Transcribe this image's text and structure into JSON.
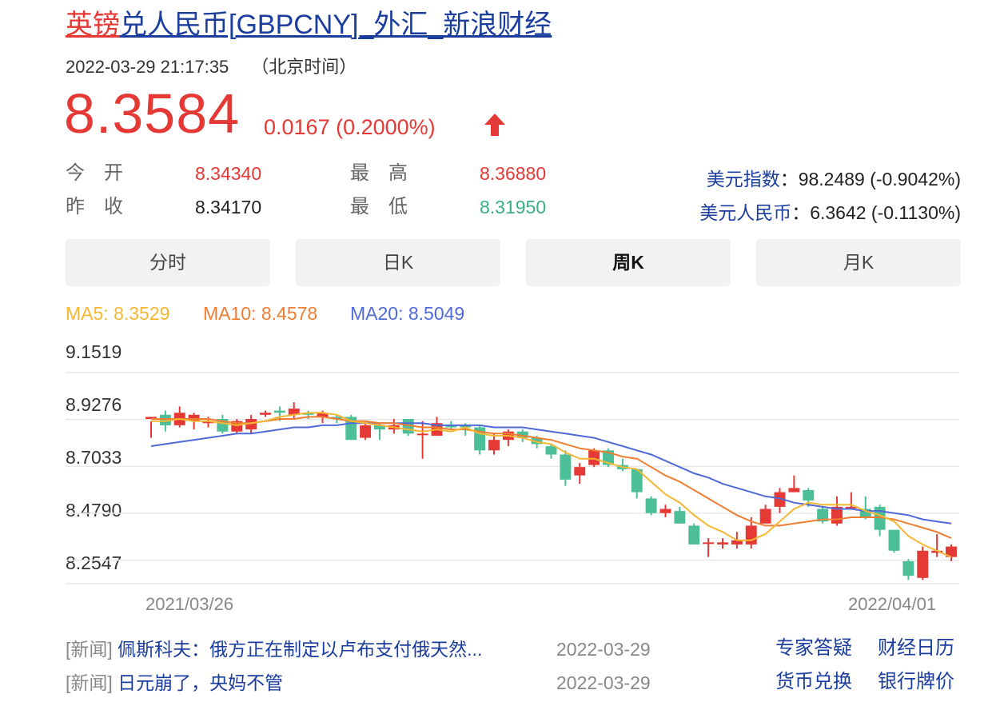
{
  "title": {
    "highlight": "英镑",
    "rest": "兑人民币[GBPCNY]_外汇_新浪财经"
  },
  "datetime": "2022-03-29 21:17:35",
  "timezone": "（北京时间）",
  "price": "8.3584",
  "change": "0.0167 (0.2000%)",
  "stats": [
    {
      "label": "今开",
      "value": "8.34340",
      "color": "#e53935"
    },
    {
      "label": "昨收",
      "value": "8.34170",
      "color": "#222222"
    },
    {
      "label": "最高",
      "value": "8.36880",
      "color": "#e53935"
    },
    {
      "label": "最低",
      "value": "8.31950",
      "color": "#3aae87"
    }
  ],
  "indices": [
    {
      "label": "美元指数",
      "value": "98.2489 (-0.9042%)"
    },
    {
      "label": "美元人民币",
      "value": "6.3642 (-0.1130%)"
    }
  ],
  "tabs": [
    "分时",
    "日K",
    "周K",
    "月K"
  ],
  "active_tab": 2,
  "ma": {
    "ma5": {
      "label": "MA5: 8.3529",
      "color": "#f5b731"
    },
    "ma10": {
      "label": "MA10: 8.4578",
      "color": "#ef7d32"
    },
    "ma20": {
      "label": "MA20: 8.5049",
      "color": "#4f6ad8"
    }
  },
  "chart_data": {
    "type": "candlestick",
    "y_ticks": [
      "9.1519",
      "8.9276",
      "8.7033",
      "8.4790",
      "8.2547"
    ],
    "ylim": [
      8.1425,
      9.1519
    ],
    "x_labels": [
      "2021/03/26",
      "2022/04/01"
    ],
    "colors": {
      "up": "#e53935",
      "down": "#4dbf98"
    },
    "candles": [
      [
        8.93,
        8.94,
        8.92,
        8.84
      ],
      [
        8.95,
        8.9,
        8.97,
        8.87
      ],
      [
        8.9,
        8.96,
        8.99,
        8.89
      ],
      [
        8.92,
        8.95,
        8.96,
        8.88
      ],
      [
        8.91,
        8.92,
        8.94,
        8.89
      ],
      [
        8.93,
        8.87,
        8.95,
        8.86
      ],
      [
        8.87,
        8.92,
        8.93,
        8.86
      ],
      [
        8.88,
        8.93,
        8.95,
        8.86
      ],
      [
        8.95,
        8.96,
        8.97,
        8.94
      ],
      [
        8.97,
        8.96,
        8.99,
        8.92
      ],
      [
        8.95,
        8.98,
        9.01,
        8.93
      ],
      [
        8.96,
        8.95,
        8.97,
        8.93
      ],
      [
        8.94,
        8.96,
        8.97,
        8.91
      ],
      [
        8.94,
        8.93,
        8.95,
        8.91
      ],
      [
        8.94,
        8.83,
        8.95,
        8.83
      ],
      [
        8.84,
        8.9,
        8.91,
        8.83
      ],
      [
        8.9,
        8.88,
        8.91,
        8.83
      ],
      [
        8.88,
        8.9,
        8.93,
        8.86
      ],
      [
        8.93,
        8.86,
        8.93,
        8.85
      ],
      [
        8.86,
        8.86,
        8.92,
        8.74
      ],
      [
        8.85,
        8.91,
        8.94,
        8.85
      ],
      [
        8.9,
        8.89,
        8.92,
        8.88
      ],
      [
        8.9,
        8.89,
        8.91,
        8.85
      ],
      [
        8.89,
        8.78,
        8.9,
        8.76
      ],
      [
        8.78,
        8.83,
        8.86,
        8.76
      ],
      [
        8.83,
        8.87,
        8.88,
        8.8
      ],
      [
        8.87,
        8.84,
        8.88,
        8.82
      ],
      [
        8.84,
        8.81,
        8.85,
        8.79
      ],
      [
        8.8,
        8.76,
        8.81,
        8.74
      ],
      [
        8.76,
        8.64,
        8.78,
        8.61
      ],
      [
        8.66,
        8.7,
        8.72,
        8.62
      ],
      [
        8.71,
        8.78,
        8.79,
        8.7
      ],
      [
        8.78,
        8.71,
        8.79,
        8.7
      ],
      [
        8.71,
        8.69,
        8.74,
        8.68
      ],
      [
        8.69,
        8.58,
        8.69,
        8.55
      ],
      [
        8.55,
        8.48,
        8.56,
        8.47
      ],
      [
        8.48,
        8.5,
        8.52,
        8.46
      ],
      [
        8.49,
        8.43,
        8.51,
        8.43
      ],
      [
        8.42,
        8.33,
        8.43,
        8.33
      ],
      [
        8.34,
        8.34,
        8.36,
        8.27
      ],
      [
        8.33,
        8.34,
        8.36,
        8.31
      ],
      [
        8.33,
        8.35,
        8.39,
        8.31
      ],
      [
        8.33,
        8.42,
        8.46,
        8.31
      ],
      [
        8.43,
        8.5,
        8.52,
        8.44
      ],
      [
        8.51,
        8.58,
        8.6,
        8.48
      ],
      [
        8.58,
        8.6,
        8.66,
        8.58
      ],
      [
        8.59,
        8.54,
        8.6,
        8.51
      ],
      [
        8.5,
        8.44,
        8.51,
        8.43
      ],
      [
        8.43,
        8.51,
        8.56,
        8.42
      ],
      [
        8.51,
        8.51,
        8.58,
        8.5
      ],
      [
        8.5,
        8.46,
        8.56,
        8.45
      ],
      [
        8.51,
        8.4,
        8.52,
        8.37
      ],
      [
        8.4,
        8.3,
        8.4,
        8.29
      ],
      [
        8.25,
        8.18,
        8.26,
        8.16
      ],
      [
        8.17,
        8.3,
        8.32,
        8.16
      ],
      [
        8.29,
        8.3,
        8.38,
        8.27
      ],
      [
        8.27,
        8.32,
        8.33,
        8.25
      ]
    ],
    "ma5": [
      8.92,
      8.92,
      8.93,
      8.92,
      8.92,
      8.91,
      8.9,
      8.91,
      8.92,
      8.94,
      8.95,
      8.96,
      8.96,
      8.95,
      8.92,
      8.91,
      8.9,
      8.89,
      8.88,
      8.87,
      8.88,
      8.87,
      8.89,
      8.86,
      8.85,
      8.85,
      8.84,
      8.82,
      8.81,
      8.77,
      8.74,
      8.74,
      8.72,
      8.7,
      8.69,
      8.63,
      8.57,
      8.53,
      8.47,
      8.42,
      8.39,
      8.35,
      8.35,
      8.38,
      8.44,
      8.5,
      8.53,
      8.52,
      8.52,
      8.52,
      8.49,
      8.47,
      8.44,
      8.37,
      8.33,
      8.3,
      8.27
    ],
    "ma10": [
      8.93,
      8.93,
      8.93,
      8.93,
      8.93,
      8.92,
      8.91,
      8.91,
      8.92,
      8.93,
      8.93,
      8.94,
      8.94,
      8.93,
      8.92,
      8.92,
      8.91,
      8.91,
      8.9,
      8.89,
      8.89,
      8.88,
      8.88,
      8.87,
      8.86,
      8.86,
      8.85,
      8.84,
      8.83,
      8.81,
      8.79,
      8.78,
      8.77,
      8.75,
      8.74,
      8.7,
      8.66,
      8.63,
      8.59,
      8.55,
      8.51,
      8.47,
      8.44,
      8.42,
      8.42,
      8.43,
      8.44,
      8.45,
      8.45,
      8.46,
      8.46,
      8.46,
      8.45,
      8.43,
      8.41,
      8.39,
      8.36
    ],
    "ma20": [
      8.8,
      8.81,
      8.82,
      8.83,
      8.84,
      8.85,
      8.86,
      8.86,
      8.87,
      8.88,
      8.89,
      8.89,
      8.9,
      8.9,
      8.91,
      8.91,
      8.91,
      8.91,
      8.91,
      8.91,
      8.9,
      8.9,
      8.9,
      8.9,
      8.89,
      8.89,
      8.89,
      8.88,
      8.87,
      8.86,
      8.85,
      8.84,
      8.82,
      8.8,
      8.78,
      8.76,
      8.73,
      8.7,
      8.67,
      8.65,
      8.62,
      8.6,
      8.58,
      8.56,
      8.55,
      8.53,
      8.52,
      8.51,
      8.5,
      8.5,
      8.49,
      8.49,
      8.48,
      8.47,
      8.45,
      8.44,
      8.43
    ]
  },
  "news": [
    {
      "tag": "[新闻]",
      "title": "佩斯科夫：俄方正在制定以卢布支付俄天然...",
      "date": "2022-03-29"
    },
    {
      "tag": "[新闻]",
      "title": "日元崩了，央妈不管",
      "date": "2022-03-29"
    }
  ],
  "links": [
    "专家答疑",
    "财经日历",
    "货币兑换",
    "银行牌价"
  ]
}
